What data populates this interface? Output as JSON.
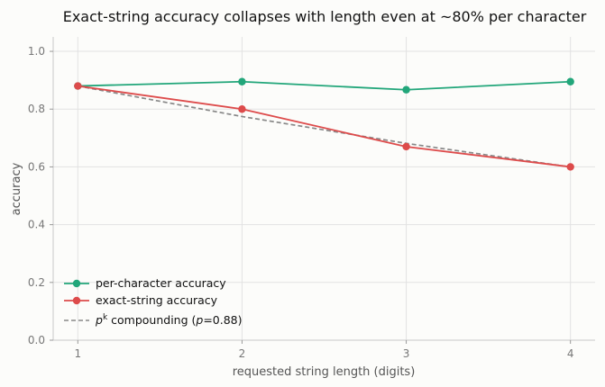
{
  "chart_data": {
    "type": "line",
    "title": "Exact-string accuracy collapses with length even at ~80% per character",
    "xlabel": "requested string length (digits)",
    "ylabel": "accuracy",
    "x": [
      1,
      2,
      3,
      4
    ],
    "xlim": [
      0.85,
      4.15
    ],
    "ylim": [
      0.0,
      1.05
    ],
    "xticks": [
      "1",
      "2",
      "3",
      "4"
    ],
    "yticks": [
      "0.0",
      "0.2",
      "0.4",
      "0.6",
      "0.8",
      "1.0"
    ],
    "grid": true,
    "legend_position": "lower-left",
    "series": [
      {
        "name": "per-character accuracy",
        "values": [
          0.88,
          0.895,
          0.867,
          0.895
        ],
        "color": "#22a67a",
        "style": "solid",
        "markers": true
      },
      {
        "name": "exact-string accuracy",
        "values": [
          0.88,
          0.8,
          0.67,
          0.6
        ],
        "color": "#dd4b4b",
        "style": "solid",
        "markers": true
      },
      {
        "name": "compounding",
        "values": [
          0.88,
          0.7744,
          0.6815,
          0.5997
        ],
        "color": "#888888",
        "style": "dashed",
        "markers": false
      }
    ],
    "legend": {
      "entry3": {
        "p": "p",
        "k": "k",
        "rest": " compounding (",
        "p2": "p",
        "eq": "=0.88)"
      }
    }
  }
}
